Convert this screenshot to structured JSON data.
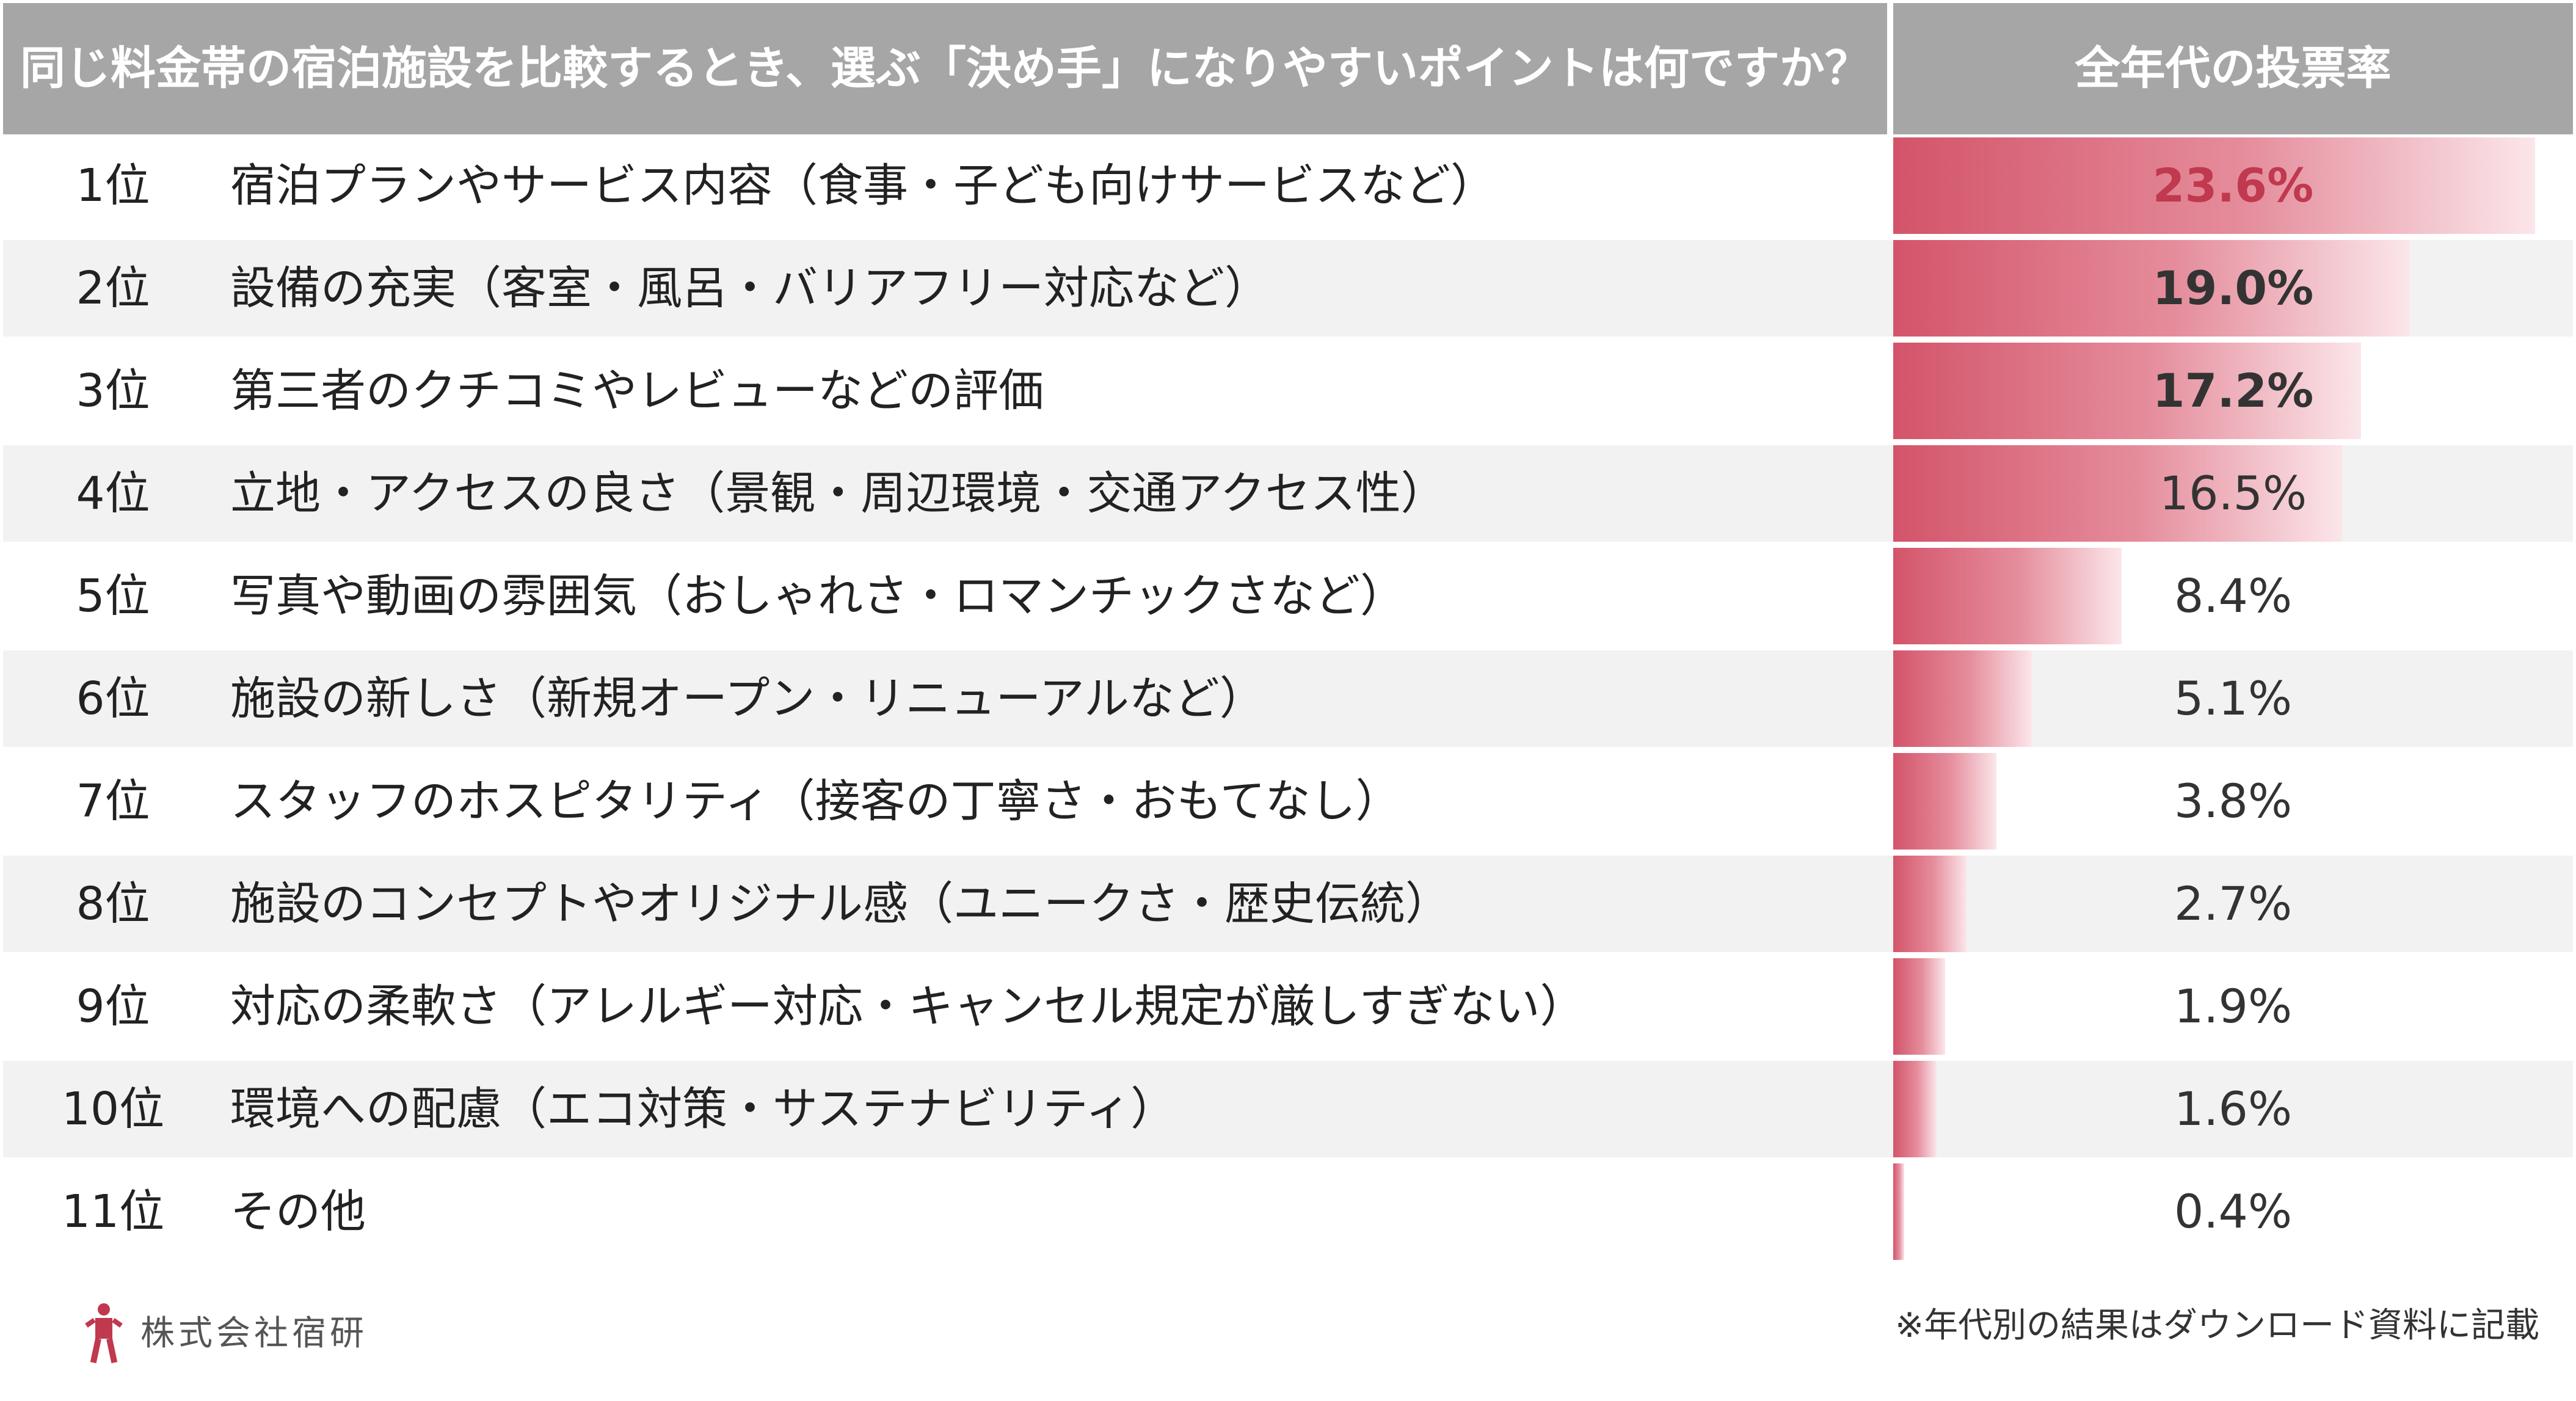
{
  "header": {
    "question": "同じ料金帯の宿泊施設を比較するとき、選ぶ「決め手」になりやすいポイントは何ですか？",
    "column": "全年代の投票率"
  },
  "chart_data": {
    "type": "bar",
    "orientation": "horizontal",
    "title": "同じ料金帯の宿泊施設を比較するとき、選ぶ「決め手」になりやすいポイントは何ですか？",
    "value_header": "全年代の投票率",
    "xlim": [
      0,
      25
    ],
    "ranks": [
      "1位",
      "2位",
      "3位",
      "4位",
      "5位",
      "6位",
      "7位",
      "8位",
      "9位",
      "10位",
      "11位"
    ],
    "categories": [
      "宿泊プランやサービス内容（食事・子ども向けサービスなど）",
      "設備の充実（客室・風呂・バリアフリー対応など）",
      "第三者のクチコミやレビューなどの評価",
      "立地・アクセスの良さ（景観・周辺環境・交通アクセス性）",
      "写真や動画の雰囲気（おしゃれさ・ロマンチックさなど）",
      "施設の新しさ（新規オープン・リニューアルなど）",
      "スタッフのホスピタリティ（接客の丁寧さ・おもてなし）",
      "施設のコンセプトやオリジナル感（ユニークさ・歴史伝統）",
      "対応の柔軟さ（アレルギー対応・キャンセル規定が厳しすぎない）",
      "環境への配慮（エコ対策・サステナビリティ）",
      "その他"
    ],
    "values": [
      23.6,
      19.0,
      17.2,
      16.5,
      8.4,
      5.1,
      3.8,
      2.7,
      1.9,
      1.6,
      0.4
    ],
    "value_labels": [
      "23.6%",
      "19.0%",
      "17.2%",
      "16.5%",
      "8.4%",
      "5.1%",
      "3.8%",
      "2.7%",
      "1.9%",
      "1.6%",
      "0.4%"
    ],
    "bold_top": 3,
    "accent_top": 1,
    "bar_color": "#d3546a"
  },
  "footer": {
    "company": "株式会社宿研",
    "note": "※年代別の結果はダウンロード資料に記載"
  }
}
